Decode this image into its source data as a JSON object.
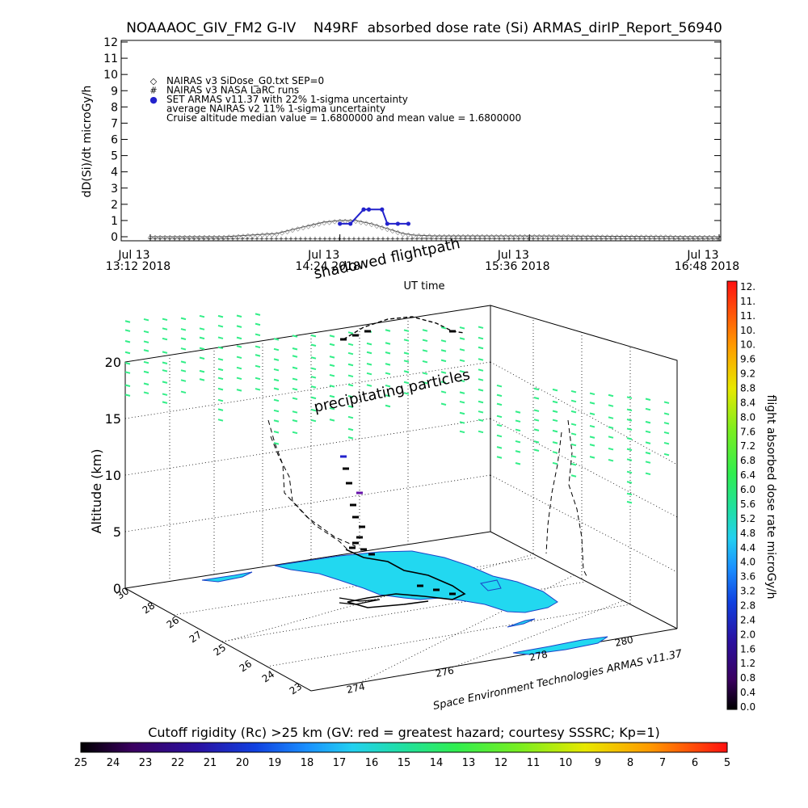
{
  "header": {
    "title": "NOAAAOC_GIV_FM2 G-IV    N49RF  absorbed dose rate (Si) ARMAS_dirIP_Report_56940"
  },
  "chart_data": [
    {
      "type": "line",
      "ylabel": "dD(Si)/dt microGy/h",
      "xlabel": "UT time",
      "ylim": [
        0,
        12
      ],
      "yticks": [
        "0",
        "1",
        "2",
        "3",
        "4",
        "5",
        "6",
        "7",
        "8",
        "9",
        "10",
        "11",
        "12"
      ],
      "xticks": [
        {
          "day": "Jul 13",
          "time": "13:12 2018"
        },
        {
          "day": "Jul 13",
          "time": "14:24 2018"
        },
        {
          "day": "Jul 13",
          "time": "15:36 2018"
        },
        {
          "day": "Jul 13",
          "time": "16:48 2018"
        }
      ],
      "legend": [
        {
          "symbol": "◇",
          "text": "NAIRAS v3 SiDose_G0.txt SEP=0"
        },
        {
          "symbol": "#",
          "text": "NAIRAS v3 NASA LaRC runs"
        },
        {
          "symbol": "●",
          "text": "SET ARMAS v11.37 with 22% 1-sigma uncertainty"
        },
        {
          "symbol": "",
          "text": "average NAIRAS v2 11% 1-sigma uncertainty"
        },
        {
          "symbol": "",
          "text": "Cruise altitude median value = 1.6800000 and mean value = 1.6800000"
        }
      ],
      "legend_position": "top-left",
      "series": [
        {
          "name": "NAIRAS v3 SiDose_G0.txt SEP=0",
          "color": "#555555",
          "x": [
            "13:12",
            "13:40",
            "14:00",
            "14:10",
            "14:18",
            "14:24",
            "14:30",
            "14:36",
            "14:42",
            "14:48",
            "14:52",
            "15:00",
            "15:36",
            "16:48"
          ],
          "y": [
            0,
            0,
            0.2,
            0.6,
            0.9,
            1.0,
            1.0,
            0.8,
            0.5,
            0.2,
            0.1,
            0.05,
            0.05,
            0
          ]
        },
        {
          "name": "SET ARMAS v11.37 with 22% 1-sigma uncertainty",
          "color": "#2222cc",
          "x": [
            "14:24",
            "14:28",
            "14:33",
            "14:35",
            "14:40",
            "14:42",
            "14:46",
            "14:50"
          ],
          "y": [
            0.8,
            0.8,
            1.68,
            1.68,
            1.68,
            0.8,
            0.8,
            0.8
          ]
        }
      ]
    },
    {
      "type": "scatter",
      "title_lines": [
        "shadowed flightpath",
        "precipitating particles"
      ],
      "zlabel": "Altitude (km)",
      "zticks": [
        "0",
        "5",
        "10",
        "15",
        "20"
      ],
      "lat_ticks": [
        "30",
        "28",
        "26",
        "27",
        "25",
        "26",
        "24",
        "23"
      ],
      "lon_ticks": [
        "274",
        "276",
        "278",
        "280"
      ],
      "credit": "Space Environment Technologies ARMAS v11.37"
    }
  ],
  "colorbar_right": {
    "label": "flight absorbed dose rate microGy/h",
    "ticks": [
      "12.",
      "11.",
      "11.",
      "10.",
      "10.",
      "9.6",
      "9.2",
      "8.8",
      "8.4",
      "8.0",
      "7.6",
      "7.2",
      "6.8",
      "6.4",
      "6.0",
      "5.6",
      "5.2",
      "4.8",
      "4.4",
      "4.0",
      "3.6",
      "3.2",
      "2.8",
      "2.4",
      "2.0",
      "1.6",
      "1.2",
      "0.8",
      "0.4",
      "0.0"
    ]
  },
  "colorbar_bottom": {
    "label": "Cutoff rigidity (Rc) >25 km (GV: red = greatest hazard; courtesy SSSRC; Kp=1)",
    "ticks": [
      "25",
      "24",
      "23",
      "22",
      "21",
      "20",
      "19",
      "18",
      "17",
      "16",
      "15",
      "14",
      "13",
      "12",
      "11",
      "10",
      "9",
      "8",
      "7",
      "6",
      "5"
    ]
  },
  "colors": {
    "ocean": "#ffffff",
    "land": "#22d8f0",
    "particles": "#33ee88",
    "flight": "#000000"
  }
}
